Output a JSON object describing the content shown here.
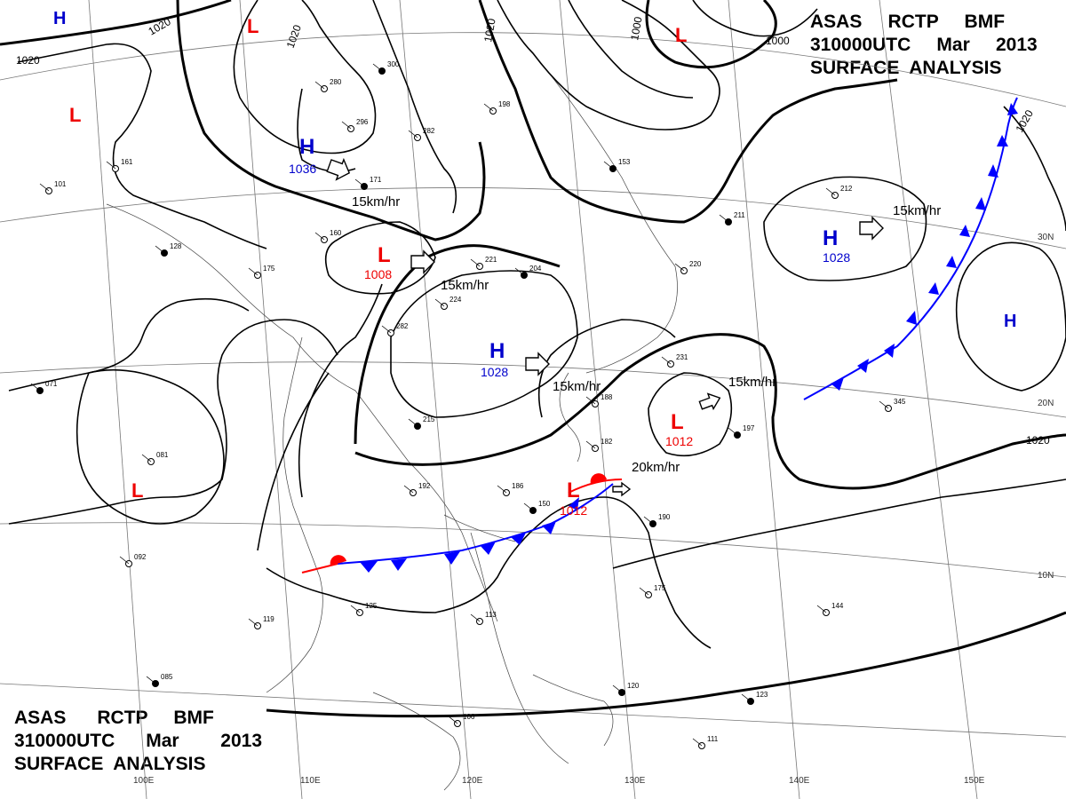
{
  "header": {
    "line1": [
      "ASAS",
      "RCTP",
      "BMF"
    ],
    "line2": [
      "310000UTC",
      "Mar",
      "2013"
    ],
    "line3": "SURFACE  ANALYSIS"
  },
  "footer": {
    "line1": [
      "ASAS",
      "RCTP",
      "BMF"
    ],
    "line2": [
      "310000UTC",
      "Mar",
      "2013"
    ],
    "line3": "SURFACE  ANALYSIS"
  },
  "colors": {
    "high": "#0000cc",
    "low": "#ee0000",
    "front_cold": "#0000ff",
    "front_warm": "#ff0000",
    "isobar": "#000000"
  },
  "pressure_centers": [
    {
      "type": "H",
      "value": "1036"
    },
    {
      "type": "L",
      "value": "1008"
    },
    {
      "type": "H",
      "value": "1028"
    },
    {
      "type": "L",
      "value": "1012"
    },
    {
      "type": "L",
      "value": "1012"
    },
    {
      "type": "H",
      "value": "1028"
    },
    {
      "type": "H",
      "value": ""
    },
    {
      "type": "H",
      "value": ""
    },
    {
      "type": "L",
      "value": ""
    },
    {
      "type": "L",
      "value": ""
    },
    {
      "type": "L",
      "value": ""
    },
    {
      "type": "L",
      "value": ""
    }
  ],
  "isobar_labels": [
    "1020",
    "1020",
    "1020",
    "1020",
    "1000",
    "1000",
    "1020",
    "1020"
  ],
  "motion_labels": [
    "15km/hr",
    "15km/hr",
    "15km/hr",
    "15km/hr",
    "15km/hr",
    "20km/hr"
  ],
  "longitude_labels": [
    "100E",
    "110E",
    "120E",
    "130E",
    "140E",
    "150E"
  ],
  "latitude_labels": [
    "30N",
    "20N",
    "10N"
  ],
  "station_samples": [
    "171",
    "221",
    "224",
    "204",
    "282",
    "296",
    "215",
    "192",
    "186",
    "150",
    "182",
    "188",
    "190",
    "175",
    "144",
    "123",
    "111",
    "106",
    "120",
    "125",
    "119",
    "085",
    "092",
    "081",
    "071",
    "101",
    "161",
    "128",
    "160",
    "175",
    "153",
    "198",
    "280",
    "300",
    "212",
    "345",
    "211",
    "220",
    "231",
    "197",
    "282",
    "113"
  ]
}
